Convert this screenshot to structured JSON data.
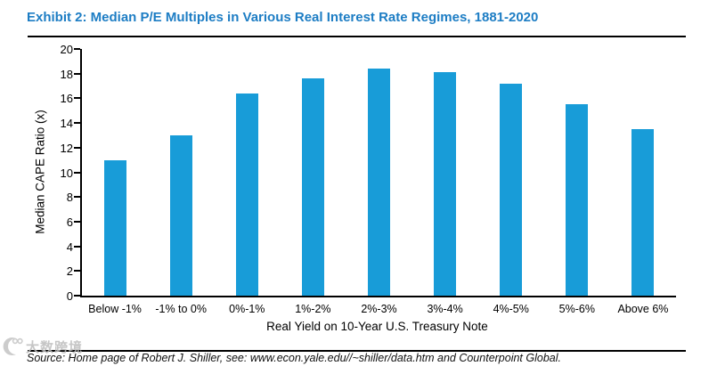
{
  "page": {
    "title": "Exhibit 2: Median P/E Multiples in Various Real Interest Rate Regimes, 1881-2020",
    "source_note": "Source: Home page of Robert J. Shiller, see: www.econ.yale.edu//~shiller/data.htm and Counterpoint Global.",
    "watermark_text": "大数跨境"
  },
  "colors": {
    "title": "#1D7DC4",
    "bar": "#189CD8",
    "axis": "#000000",
    "watermark": "#BDBDBD"
  },
  "chart_data": {
    "type": "bar",
    "title": "Exhibit 2: Median P/E Multiples in Various Real Interest Rate Regimes, 1881-2020",
    "categories": [
      "Below -1%",
      "-1% to 0%",
      "0%-1%",
      "1%-2%",
      "2%-3%",
      "3%-4%",
      "4%-5%",
      "5%-6%",
      "Above 6%"
    ],
    "values": [
      11.0,
      13.0,
      16.4,
      17.6,
      18.4,
      18.1,
      17.2,
      15.5,
      13.5
    ],
    "xlabel": "Real Yield on 10-Year U.S. Treasury Note",
    "ylabel": "Median CAPE Ratio (x)",
    "ylim": [
      0,
      20
    ],
    "ytick_step": 2,
    "grid": false,
    "legend": null,
    "bar_color": "#189CD8"
  }
}
